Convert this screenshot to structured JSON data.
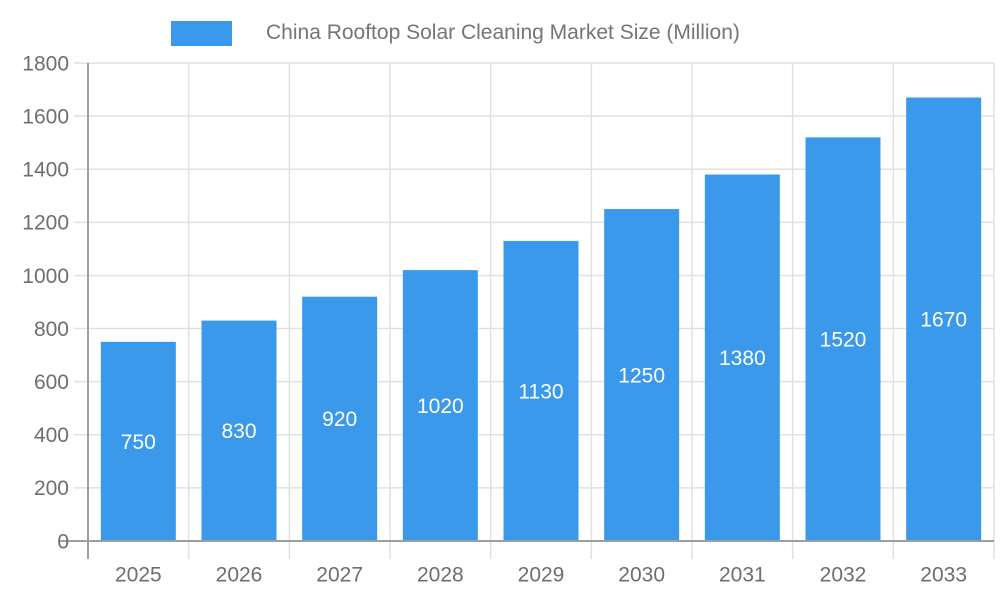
{
  "chart_data": {
    "type": "bar",
    "title": "China Rooftop Solar Cleaning Market Size (Million)",
    "legend": {
      "label": "China Rooftop Solar Cleaning Market Size (Million)",
      "position": "top"
    },
    "categories": [
      "2025",
      "2026",
      "2027",
      "2028",
      "2029",
      "2030",
      "2031",
      "2032",
      "2033"
    ],
    "series": [
      {
        "name": "China Rooftop Solar Cleaning Market Size (Million)",
        "values": [
          750,
          830,
          920,
          1020,
          1130,
          1250,
          1380,
          1520,
          1670
        ]
      }
    ],
    "xlabel": "",
    "ylabel": "",
    "ylim": [
      0,
      1800
    ],
    "ytick_step": 200,
    "yticks": [
      0,
      200,
      400,
      600,
      800,
      1000,
      1200,
      1400,
      1600,
      1800
    ],
    "grid": true,
    "bar_value_labels_shown": true,
    "colors": {
      "bar": "#3B99EC",
      "axis": "#9E9E9E",
      "grid": "#E1E1E1",
      "tick_text": "#6E6E6E",
      "legend_text": "#757575",
      "bar_label_text": "#FFFFFF",
      "background": "#FFFFFF"
    }
  }
}
